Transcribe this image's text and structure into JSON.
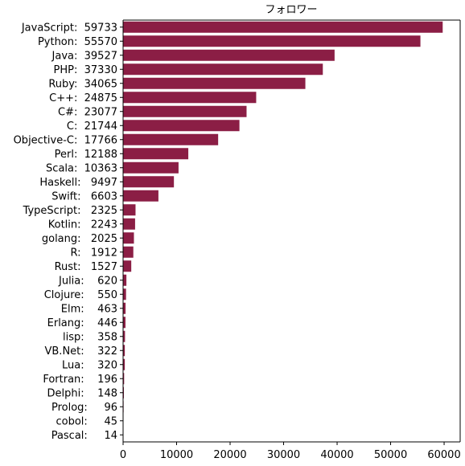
{
  "chart_data": {
    "type": "bar",
    "orientation": "horizontal",
    "title": "フォロワー",
    "xlabel": "",
    "ylabel": "",
    "xlim": [
      0,
      63000
    ],
    "x_ticks": [
      0,
      10000,
      20000,
      30000,
      40000,
      50000,
      60000
    ],
    "bar_color": "#8B1E45",
    "grid": false,
    "categories": [
      "JavaScript:  59733",
      "Python:  55570",
      "Java:  39527",
      "PHP:  37330",
      "Ruby:  34065",
      "C++:  24875",
      "C#:  23077",
      "C:  21744",
      "Objective-C:  17766",
      "Perl:  12188",
      "Scala:  10363",
      "Haskell:   9497",
      "Swift:   6603",
      "TypeScript:   2325",
      "Kotlin:   2243",
      "golang:   2025",
      "R:   1912",
      "Rust:   1527",
      "Julia:    620",
      "Clojure:    550",
      "Elm:    463",
      "Erlang:    446",
      "lisp:    358",
      "VB.Net:    322",
      "Lua:    320",
      "Fortran:    196",
      "Delphi:    148",
      "Prolog:     96",
      "cobol:     45",
      "Pascal:     14"
    ],
    "values": [
      59733,
      55570,
      39527,
      37330,
      34065,
      24875,
      23077,
      21744,
      17766,
      12188,
      10363,
      9497,
      6603,
      2325,
      2243,
      2025,
      1912,
      1527,
      620,
      550,
      463,
      446,
      358,
      322,
      320,
      196,
      148,
      96,
      45,
      14
    ]
  }
}
